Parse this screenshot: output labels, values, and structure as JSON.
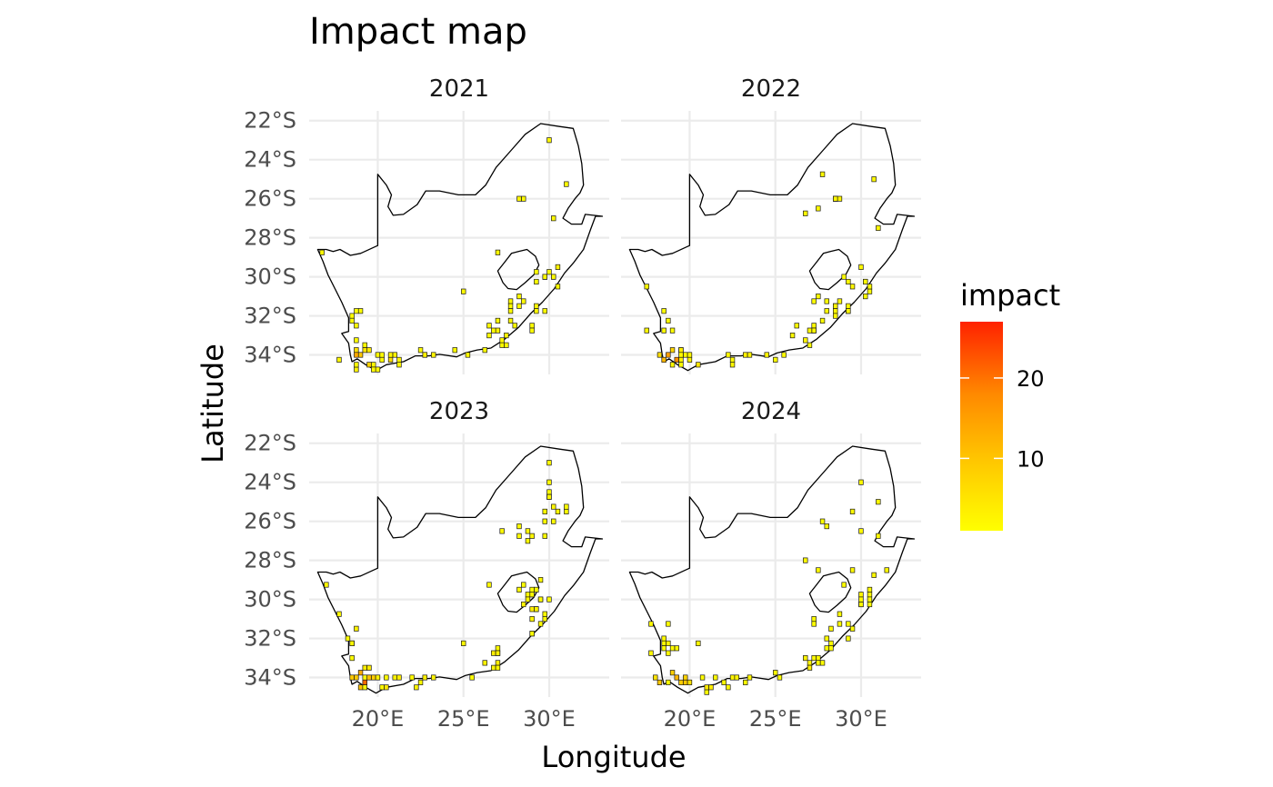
{
  "title": "Impact map",
  "x_axis_title": "Longitude",
  "y_axis_title": "Latitude",
  "legend": {
    "title": "impact",
    "breaks": [
      "10",
      "20"
    ],
    "break_values": [
      10,
      20
    ],
    "range": [
      1,
      27
    ],
    "low_color": "#ffff00",
    "mid_color": "#ffa500",
    "high_color": "#ff2200"
  },
  "x_ticks": [
    "20°E",
    "25°E",
    "30°E"
  ],
  "x_tick_values": [
    20,
    25,
    30
  ],
  "y_ticks": [
    "22°S",
    "24°S",
    "26°S",
    "28°S",
    "30°S",
    "32°S",
    "34°S"
  ],
  "y_tick_values": [
    -22,
    -24,
    -26,
    -28,
    -30,
    -32,
    -34
  ],
  "chart_data": {
    "type": "heatmap",
    "xlim": [
      16,
      33.5
    ],
    "ylim": [
      -35,
      -21.5
    ],
    "cell_size_deg": 0.25,
    "panels": [
      {
        "label": "2021",
        "clusters": [
          [
            19,
            -34.2,
            1.3,
            0.6,
            4,
            22
          ],
          [
            20.3,
            -34.3,
            2,
            0.4,
            3,
            8
          ],
          [
            22.5,
            -34,
            3,
            0.2,
            2,
            5
          ],
          [
            25.3,
            -33.9,
            1.5,
            0.2,
            1,
            3
          ],
          [
            27.2,
            -32.8,
            1,
            0.9,
            3,
            4
          ],
          [
            28.6,
            -31.6,
            1.2,
            1.2,
            2,
            3
          ],
          [
            29.8,
            -30.5,
            1,
            0.9,
            2,
            2
          ],
          [
            28.3,
            -26,
            0.6,
            0.3,
            3,
            3
          ],
          [
            18.8,
            -32.6,
            0.4,
            1.2,
            2,
            2
          ]
        ],
        "singles": [
          [
            29.9,
            -23,
            2
          ],
          [
            30.9,
            -25.2,
            2
          ],
          [
            30.3,
            -27,
            2
          ],
          [
            16.8,
            -28.7,
            2
          ],
          [
            25,
            -30.7,
            2
          ],
          [
            27,
            -28.7,
            2
          ],
          [
            30.5,
            -29.5,
            3
          ]
        ]
      },
      {
        "label": "2022",
        "clusters": [
          [
            19,
            -34.2,
            1.3,
            0.6,
            4,
            22
          ],
          [
            20.8,
            -34.3,
            2.2,
            0.4,
            3,
            8
          ],
          [
            23,
            -34,
            3,
            0.2,
            2,
            5
          ],
          [
            26.8,
            -32.9,
            1,
            0.7,
            3,
            4
          ],
          [
            28.5,
            -31.6,
            1.3,
            1,
            2,
            3
          ],
          [
            29.5,
            -30.5,
            1,
            0.8,
            2,
            3
          ],
          [
            28.4,
            -26,
            0.8,
            0.3,
            3,
            4
          ],
          [
            18.8,
            -32.2,
            0.5,
            1.3,
            2,
            2
          ]
        ],
        "singles": [
          [
            27.8,
            -24.7,
            2
          ],
          [
            30.8,
            -24.9,
            2
          ],
          [
            26.8,
            -26.7,
            2
          ],
          [
            31.1,
            -27.4,
            2
          ],
          [
            29.9,
            -29.5,
            2
          ],
          [
            17.5,
            -30.4,
            2
          ],
          [
            17.6,
            -32.8,
            2
          ],
          [
            27.5,
            -26.4,
            2
          ]
        ]
      },
      {
        "label": "2023",
        "clusters": [
          [
            19.1,
            -34.1,
            1.3,
            0.7,
            4,
            26
          ],
          [
            20.8,
            -34.3,
            2,
            0.4,
            3,
            8
          ],
          [
            23,
            -34,
            2.8,
            0.2,
            2,
            5
          ],
          [
            26.8,
            -33,
            0.9,
            0.7,
            3,
            7
          ],
          [
            28.8,
            -30.6,
            1.2,
            1.4,
            2,
            4
          ],
          [
            29,
            -26.5,
            1,
            0.6,
            2,
            3
          ],
          [
            30.4,
            -25.3,
            0.8,
            1.2,
            2,
            3
          ],
          [
            18.8,
            -32.3,
            0.5,
            1.2,
            2,
            3
          ]
        ],
        "singles": [
          [
            30,
            -23,
            2
          ],
          [
            30.1,
            -24,
            2
          ],
          [
            27.2,
            -26.5,
            2
          ],
          [
            26.5,
            -29.2,
            2
          ],
          [
            29.5,
            -29,
            2
          ],
          [
            25,
            -32.2,
            2
          ],
          [
            17.1,
            -29.2,
            2
          ],
          [
            17.8,
            -30.7,
            2
          ],
          [
            18.8,
            -31.4,
            3
          ]
        ]
      },
      {
        "label": "2024",
        "clusters": [
          [
            19,
            -34.2,
            1.3,
            0.6,
            4,
            20
          ],
          [
            20.6,
            -34.4,
            2,
            0.4,
            3,
            8
          ],
          [
            23,
            -34,
            3,
            0.2,
            2,
            4
          ],
          [
            26.8,
            -33.2,
            1,
            0.6,
            3,
            5
          ],
          [
            28.4,
            -31.5,
            1.2,
            1,
            2,
            3
          ],
          [
            29.8,
            -29.8,
            1,
            0.8,
            2,
            3
          ],
          [
            28,
            -26,
            0.5,
            0.4,
            2,
            2
          ],
          [
            18.9,
            -32.3,
            0.5,
            1.2,
            2,
            3
          ]
        ],
        "singles": [
          [
            29.9,
            -23.9,
            2
          ],
          [
            31,
            -25,
            2
          ],
          [
            29.5,
            -25.5,
            2
          ],
          [
            29.9,
            -26.5,
            2
          ],
          [
            31.1,
            -26.8,
            2
          ],
          [
            26.7,
            -27.9,
            2
          ],
          [
            27.6,
            -28.6,
            2
          ],
          [
            29.4,
            -28.6,
            2
          ],
          [
            30.8,
            -28.7,
            2
          ],
          [
            31.5,
            -28.4,
            2
          ],
          [
            17.8,
            -31.3,
            2
          ],
          [
            17.7,
            -32.8,
            2
          ],
          [
            20.6,
            -32.2,
            2
          ]
        ]
      }
    ]
  }
}
